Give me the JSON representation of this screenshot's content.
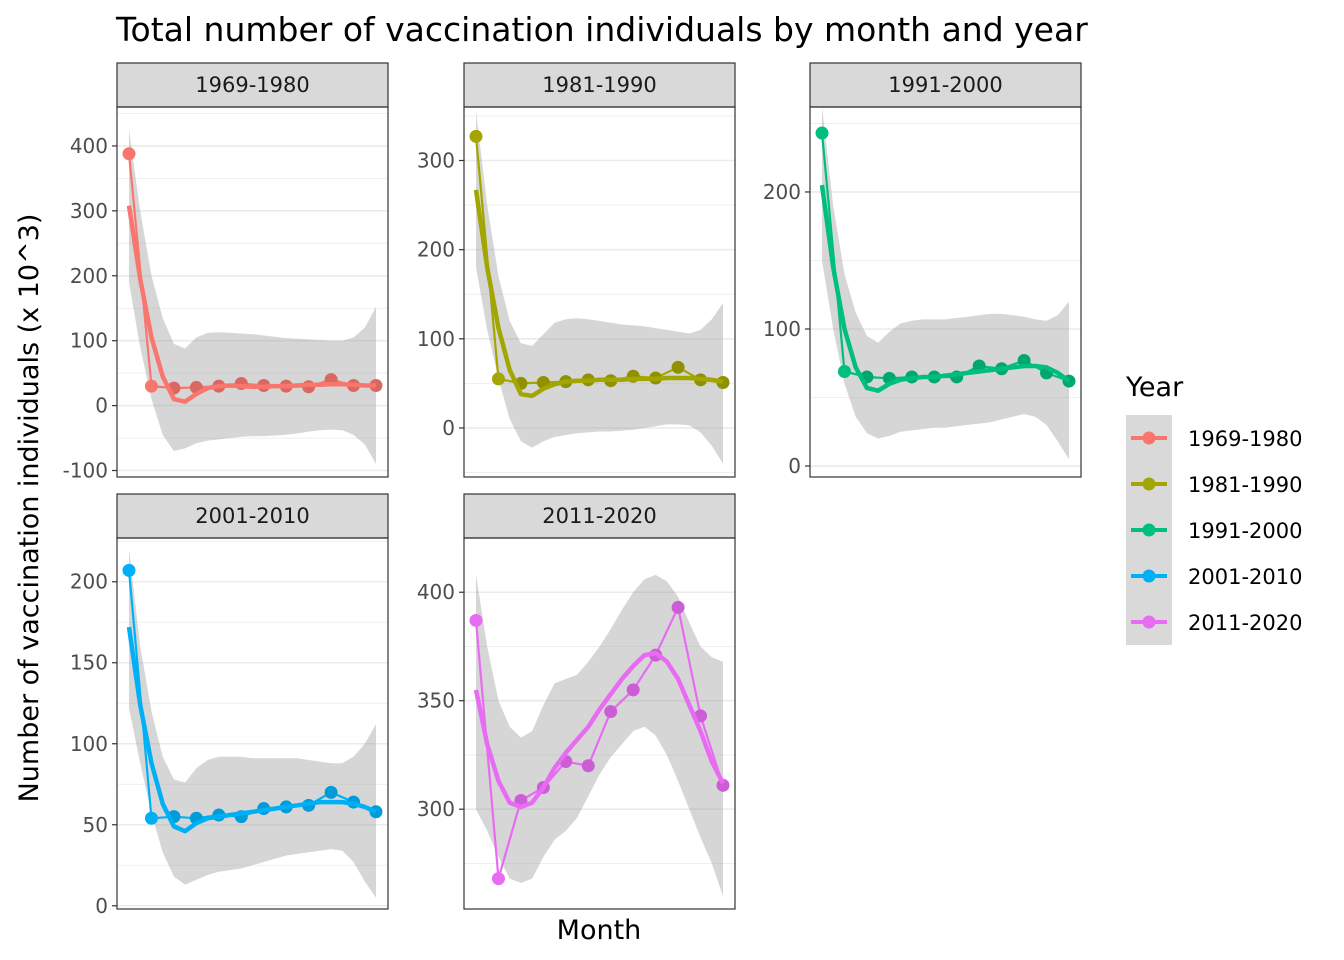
{
  "chart_data": {
    "type": "line",
    "title": "Total number of vaccination individuals by month and year",
    "xlabel": "Month",
    "ylabel": "Number of vaccination individuals (x 10^3)",
    "legend": {
      "title": "Year",
      "placement": "right"
    },
    "x": [
      1,
      2,
      3,
      4,
      5,
      6,
      7,
      8,
      9,
      10,
      11,
      12
    ],
    "panels": [
      {
        "name": "1969-1980",
        "color": "#F8766D",
        "ylim": [
          -110,
          460
        ],
        "yticks": [
          -100,
          0,
          100,
          200,
          300,
          400
        ],
        "ytick_labels": [
          "-100",
          "0",
          "100",
          "200",
          "300",
          "400"
        ],
        "values": [
          388,
          30,
          27,
          28,
          30,
          34,
          31,
          30,
          29,
          40,
          31,
          31
        ],
        "smooth": [
          308,
          195,
          105,
          45,
          10,
          6,
          18,
          27,
          30,
          31,
          30,
          29,
          29,
          30,
          30,
          31,
          32,
          32,
          33,
          33,
          32,
          31,
          31
        ],
        "band_upper": [
          425,
          300,
          200,
          135,
          95,
          88,
          105,
          112,
          113,
          112,
          111,
          110,
          108,
          106,
          104,
          103,
          102,
          101,
          100,
          100,
          105,
          120,
          152
        ],
        "band_lower": [
          190,
          90,
          10,
          -45,
          -70,
          -66,
          -58,
          -54,
          -52,
          -50,
          -48,
          -47,
          -47,
          -46,
          -45,
          -43,
          -40,
          -38,
          -37,
          -38,
          -45,
          -60,
          -90
        ]
      },
      {
        "name": "1981-1990",
        "color": "#A3A500",
        "ylim": [
          -55,
          360
        ],
        "yticks": [
          0,
          100,
          200,
          300
        ],
        "ytick_labels": [
          "0",
          "100",
          "200",
          "300"
        ],
        "values": [
          327,
          55,
          50,
          51,
          52,
          54,
          53,
          58,
          56,
          68,
          54,
          51
        ],
        "smooth": [
          267,
          180,
          112,
          65,
          38,
          36,
          44,
          49,
          52,
          53,
          53,
          54,
          54,
          54,
          55,
          55,
          55,
          56,
          56,
          56,
          55,
          54,
          52
        ],
        "band_upper": [
          355,
          250,
          170,
          120,
          95,
          92,
          105,
          118,
          122,
          123,
          122,
          120,
          118,
          116,
          115,
          114,
          112,
          110,
          108,
          106,
          110,
          122,
          140
        ],
        "band_lower": [
          180,
          110,
          55,
          10,
          -15,
          -22,
          -15,
          -10,
          -8,
          -6,
          -5,
          -4,
          -4,
          -3,
          -2,
          0,
          2,
          4,
          4,
          3,
          -5,
          -20,
          -40
        ]
      },
      {
        "name": "1991-2000",
        "color": "#00BF7D",
        "ylim": [
          -8,
          262
        ],
        "yticks": [
          0,
          100,
          200
        ],
        "ytick_labels": [
          "0",
          "100",
          "200"
        ],
        "values": [
          243,
          69,
          65,
          64,
          65,
          65,
          65,
          73,
          71,
          77,
          68,
          62
        ],
        "smooth": [
          205,
          145,
          100,
          72,
          57,
          55,
          60,
          63,
          64,
          65,
          65,
          66,
          67,
          68,
          69,
          70,
          71,
          72,
          73,
          73,
          72,
          68,
          62
        ],
        "band_upper": [
          262,
          190,
          140,
          112,
          95,
          90,
          98,
          104,
          106,
          107,
          107,
          107,
          108,
          109,
          110,
          111,
          111,
          110,
          109,
          107,
          106,
          110,
          120
        ],
        "band_lower": [
          150,
          100,
          60,
          36,
          24,
          20,
          22,
          25,
          26,
          27,
          28,
          28,
          29,
          30,
          31,
          32,
          34,
          36,
          38,
          36,
          30,
          18,
          5
        ]
      },
      {
        "name": "2001-2010",
        "color": "#00B0F6",
        "ylim": [
          -2,
          227
        ],
        "yticks": [
          0,
          50,
          100,
          150,
          200
        ],
        "ytick_labels": [
          "0",
          "50",
          "100",
          "150",
          "200"
        ],
        "values": [
          207,
          54,
          55,
          54,
          56,
          55,
          60,
          61,
          62,
          70,
          64,
          58
        ],
        "smooth": [
          172,
          124,
          88,
          63,
          49,
          46,
          51,
          54,
          55,
          56,
          57,
          58,
          59,
          60,
          61,
          62,
          63,
          64,
          64,
          64,
          63,
          61,
          58
        ],
        "band_upper": [
          220,
          160,
          120,
          92,
          78,
          76,
          85,
          90,
          92,
          92,
          92,
          91,
          91,
          91,
          91,
          91,
          90,
          89,
          88,
          88,
          92,
          100,
          112
        ],
        "band_lower": [
          122,
          88,
          57,
          33,
          18,
          13,
          16,
          19,
          21,
          22,
          23,
          25,
          27,
          29,
          31,
          32,
          33,
          34,
          35,
          34,
          27,
          15,
          5
        ]
      },
      {
        "name": "2011-2020",
        "color": "#E76BF3",
        "ylim": [
          254,
          425
        ],
        "yticks": [
          300,
          350,
          400
        ],
        "ytick_labels": [
          "300",
          "350",
          "400"
        ],
        "values": [
          387,
          268,
          304,
          310,
          322,
          320,
          345,
          355,
          371,
          393,
          343,
          311
        ],
        "smooth": [
          355,
          330,
          313,
          303,
          301,
          303,
          310,
          319,
          326,
          332,
          338,
          346,
          353,
          360,
          366,
          371,
          372,
          368,
          360,
          348,
          336,
          322,
          312
        ],
        "band_upper": [
          408,
          375,
          350,
          338,
          333,
          336,
          348,
          358,
          360,
          362,
          368,
          375,
          383,
          392,
          400,
          406,
          408,
          405,
          398,
          386,
          375,
          370,
          368
        ],
        "band_lower": [
          300,
          290,
          278,
          268,
          266,
          268,
          278,
          286,
          290,
          296,
          306,
          316,
          324,
          330,
          336,
          338,
          334,
          325,
          313,
          300,
          287,
          275,
          260
        ]
      }
    ]
  }
}
